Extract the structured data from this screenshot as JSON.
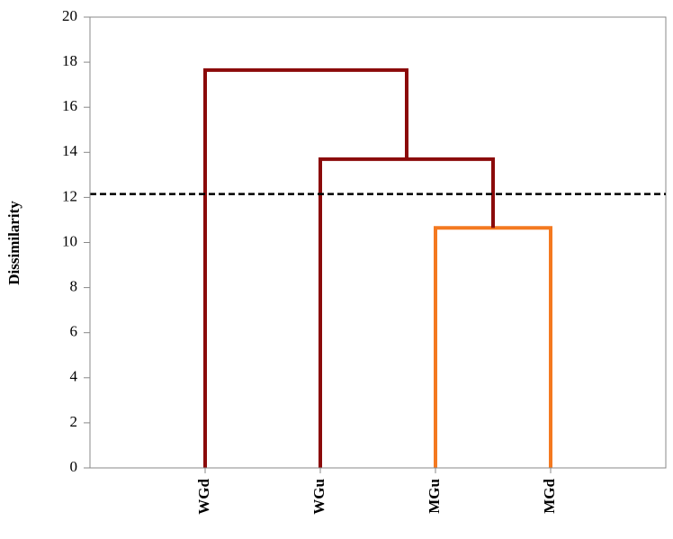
{
  "chart_data": {
    "type": "dendrogram",
    "y_label": "Dissimilarity",
    "leaves": [
      "WGd",
      "WGu",
      "MGu",
      "MGd"
    ],
    "merges": [
      {
        "nodes": [
          2,
          3
        ],
        "height": 10.65,
        "color": "#f47920"
      },
      {
        "nodes": [
          1,
          4
        ],
        "height": 13.7,
        "color": "#8b0a0a"
      },
      {
        "nodes": [
          0,
          5
        ],
        "height": 17.65,
        "color": "#8b0a0a"
      }
    ],
    "cutoff": 12.15,
    "cutoff_color": "#000000",
    "ylim": [
      0,
      20
    ],
    "yticks": [
      0,
      2,
      4,
      6,
      8,
      10,
      12,
      14,
      16,
      18,
      20
    ]
  }
}
